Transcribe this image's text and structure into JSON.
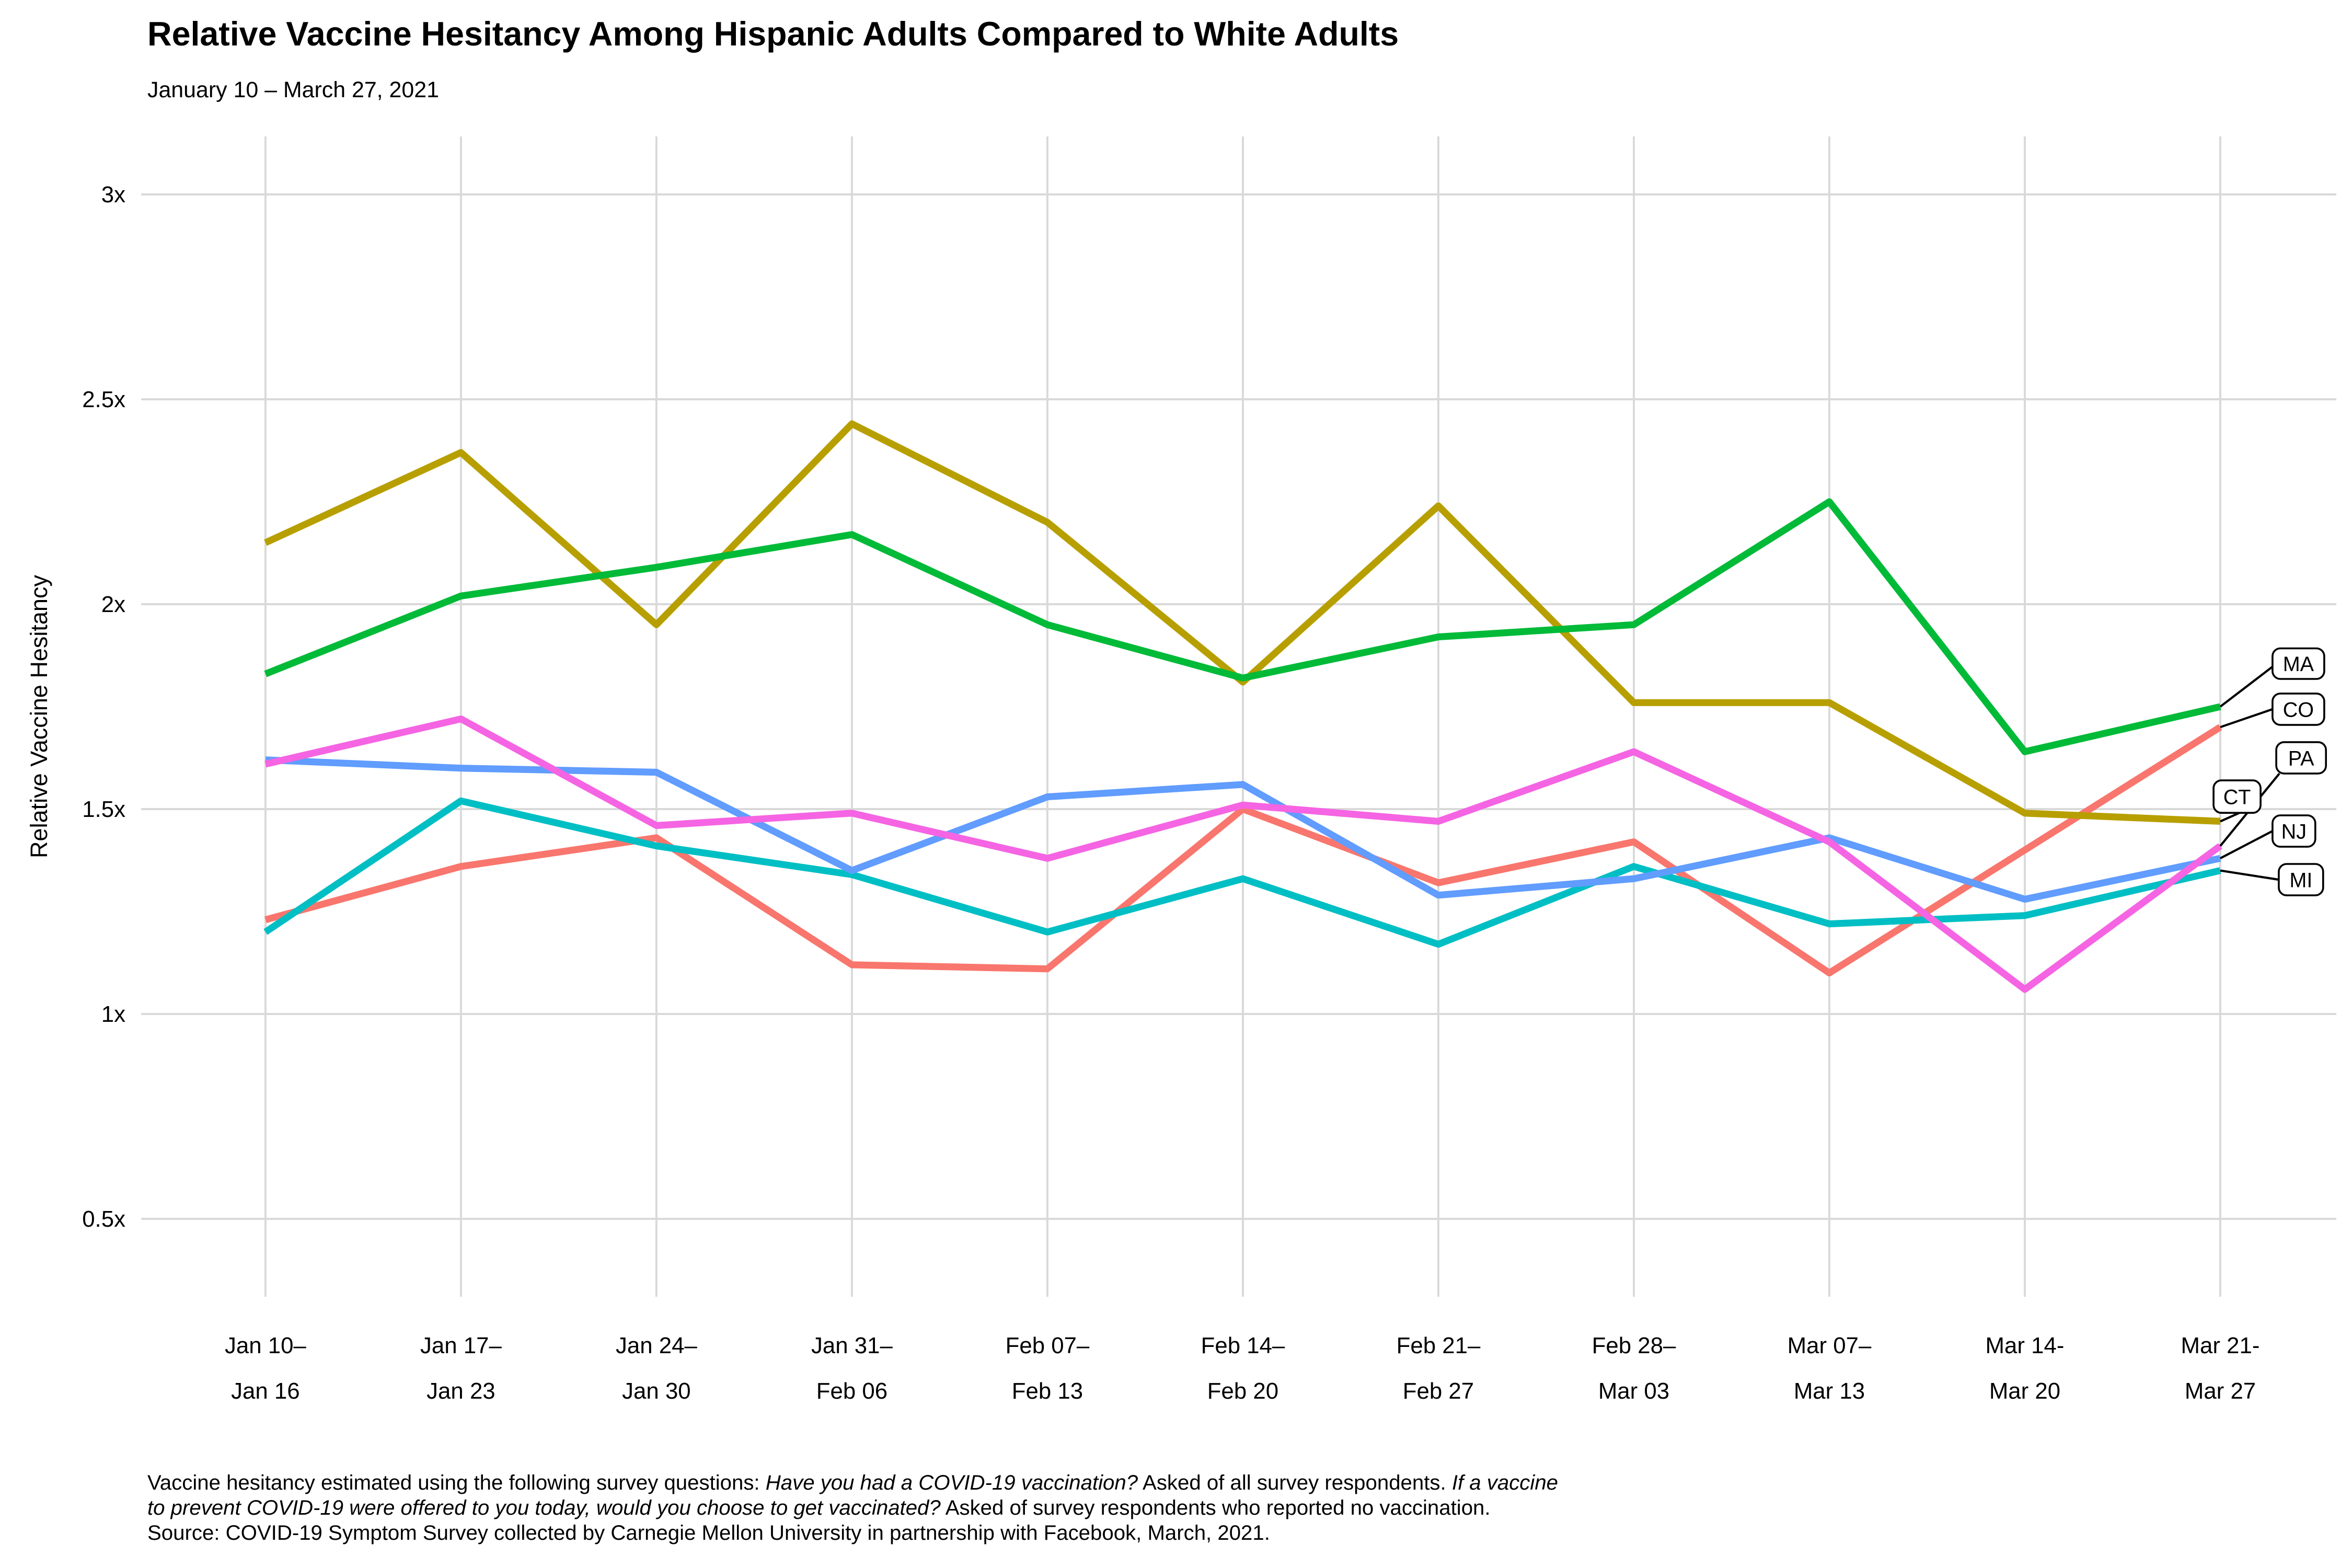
{
  "title": "Relative Vaccine Hesitancy Among Hispanic Adults Compared to White Adults",
  "subtitle": "January 10 – March 27, 2021",
  "y_axis": {
    "title": "Relative Vaccine Hesitancy",
    "tick_labels": [
      "0.5x",
      "1x",
      "1.5x",
      "2x",
      "2.5x",
      "3x"
    ],
    "tick_values": [
      0.5,
      1,
      1.5,
      2,
      2.5,
      3
    ]
  },
  "x_axis": {
    "tick_labels_two_line": [
      [
        "Jan 10–",
        "Jan 16"
      ],
      [
        "Jan 17–",
        "Jan 23"
      ],
      [
        "Jan 24–",
        "Jan 30"
      ],
      [
        "Jan 31–",
        "Feb 06"
      ],
      [
        "Feb 07–",
        "Feb 13"
      ],
      [
        "Feb 14–",
        "Feb 20"
      ],
      [
        "Feb 21–",
        "Feb 27"
      ],
      [
        "Feb 28–",
        "Mar 03"
      ],
      [
        "Mar 07–",
        "Mar 13"
      ],
      [
        "Mar 14-",
        "Mar 20"
      ],
      [
        "Mar 21-",
        "Mar 27"
      ]
    ]
  },
  "footnote_lines": [
    [
      {
        "text": "Vaccine hesitancy estimated using the following survey questions: ",
        "italic": false
      },
      {
        "text": "Have you had a COVID-19 vaccination?",
        "italic": true
      },
      {
        "text": " Asked of all survey respondents. ",
        "italic": false
      },
      {
        "text": "If a vaccine",
        "italic": true
      }
    ],
    [
      {
        "text": "to prevent COVID-19 were offered to you today, would you choose to get vaccinated?",
        "italic": true
      },
      {
        "text": " Asked of survey respondents who reported no vaccination.",
        "italic": false
      }
    ],
    [
      {
        "text": "Source: COVID-19 Symptom Survey collected by Carnegie Mellon University in partnership with Facebook, March, 2021.",
        "italic": false
      }
    ]
  ],
  "chart_data": {
    "type": "line",
    "title": "Relative Vaccine Hesitancy Among Hispanic Adults Compared to White Adults",
    "subtitle": "January 10 – March 27, 2021",
    "xlabel": "",
    "ylabel": "Relative Vaccine Hesitancy",
    "categories": [
      "Jan 10–Jan 16",
      "Jan 17–Jan 23",
      "Jan 24–Jan 30",
      "Jan 31–Feb 06",
      "Feb 07–Feb 13",
      "Feb 14–Feb 20",
      "Feb 21–Feb 27",
      "Feb 28–Mar 03",
      "Mar 07–Mar 13",
      "Mar 14-Mar 20",
      "Mar 21-Mar 27"
    ],
    "series": [
      {
        "name": "CO",
        "color": "#F8766D",
        "values": [
          1.23,
          1.36,
          1.43,
          1.12,
          1.11,
          1.5,
          1.32,
          1.42,
          1.1,
          1.4,
          1.7
        ]
      },
      {
        "name": "CT",
        "color": "#B79F00",
        "values": [
          2.15,
          2.37,
          1.95,
          2.44,
          2.2,
          1.81,
          2.24,
          1.76,
          1.76,
          1.49,
          1.47
        ]
      },
      {
        "name": "MA",
        "color": "#00BA38",
        "values": [
          1.83,
          2.02,
          2.09,
          2.17,
          1.95,
          1.82,
          1.92,
          1.95,
          2.25,
          1.64,
          1.75
        ]
      },
      {
        "name": "MI",
        "color": "#00BFC4",
        "values": [
          1.2,
          1.52,
          1.41,
          1.34,
          1.2,
          1.33,
          1.17,
          1.36,
          1.22,
          1.24,
          1.35
        ]
      },
      {
        "name": "NJ",
        "color": "#619CFF",
        "values": [
          1.62,
          1.6,
          1.59,
          1.35,
          1.53,
          1.56,
          1.29,
          1.33,
          1.43,
          1.28,
          1.38
        ]
      },
      {
        "name": "PA",
        "color": "#F564E3",
        "values": [
          1.61,
          1.72,
          1.46,
          1.49,
          1.38,
          1.51,
          1.47,
          1.64,
          1.42,
          1.06,
          1.41
        ]
      }
    ],
    "ylim": [
      0.31,
      3.14
    ],
    "grid": true,
    "gridline_color": "#D9D9D9",
    "legend_position": "right-edge-boxed-labels",
    "label_order_top_to_bottom": [
      "MA",
      "CO",
      "PA",
      "CT",
      "NJ",
      "MI"
    ]
  }
}
